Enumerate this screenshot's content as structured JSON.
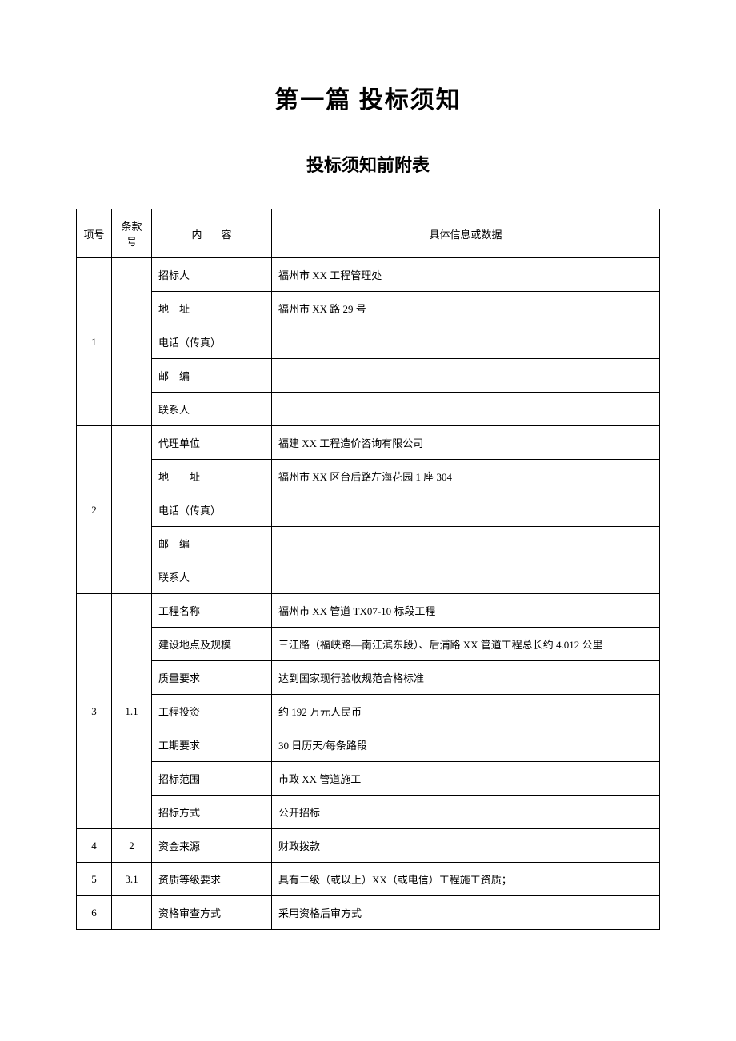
{
  "title": "第一篇 投标须知",
  "subtitle": "投标须知前附表",
  "headers": {
    "col1": "项号",
    "col2": "条款号",
    "col3": "内容",
    "col4": "具体信息或数据"
  },
  "sections": [
    {
      "num": "1",
      "clause": "",
      "rows": [
        {
          "label": "招标人",
          "value": "福州市 XX 工程管理处"
        },
        {
          "label": "地　址",
          "value": "福州市 XX 路 29 号"
        },
        {
          "label": "电话（传真）",
          "value": ""
        },
        {
          "label": "邮　编",
          "value": ""
        },
        {
          "label": "联系人",
          "value": ""
        }
      ]
    },
    {
      "num": "2",
      "clause": "",
      "rows": [
        {
          "label": "代理单位",
          "value": "福建 XX 工程造价咨询有限公司"
        },
        {
          "label": "地　　址",
          "value": "福州市 XX 区台后路左海花园 1 座 304"
        },
        {
          "label": "电话（传真）",
          "value": ""
        },
        {
          "label": "邮　编",
          "value": ""
        },
        {
          "label": "联系人",
          "value": ""
        }
      ]
    },
    {
      "num": "3",
      "clause": "1.1",
      "rows": [
        {
          "label": "工程名称",
          "value": "福州市 XX 管道 TX07-10 标段工程"
        },
        {
          "label": "建设地点及规模",
          "value": "三江路（福峡路—南江滨东段）、后浦路 XX 管道工程总长约 4.012 公里"
        },
        {
          "label": "质量要求",
          "value": "达到国家现行验收规范合格标准"
        },
        {
          "label": "工程投资",
          "value": "约 192 万元人民币"
        },
        {
          "label": "工期要求",
          "value": "30 日历天/每条路段"
        },
        {
          "label": "招标范围",
          "value": "市政 XX 管道施工"
        },
        {
          "label": "招标方式",
          "value": "公开招标"
        }
      ]
    },
    {
      "num": "4",
      "clause": "2",
      "rows": [
        {
          "label": "资金来源",
          "value": "财政拨款"
        }
      ]
    },
    {
      "num": "5",
      "clause": "3.1",
      "rows": [
        {
          "label": "资质等级要求",
          "value": "具有二级（或以上）XX（或电信）工程施工资质；"
        }
      ]
    },
    {
      "num": "6",
      "clause": "",
      "rows": [
        {
          "label": "资格审查方式",
          "value": "采用资格后审方式"
        }
      ]
    }
  ]
}
